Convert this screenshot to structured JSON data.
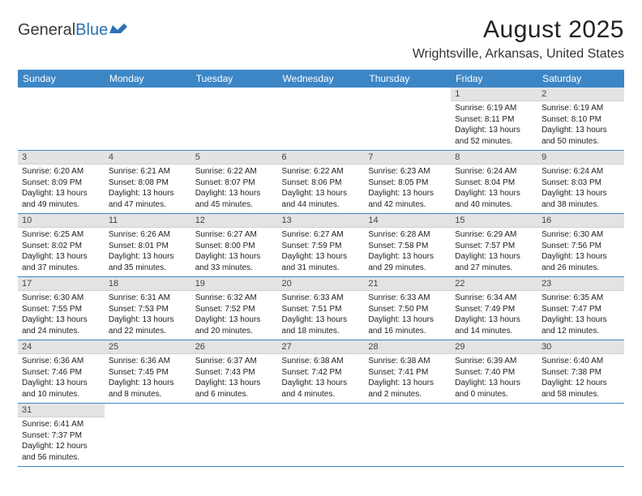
{
  "brand": {
    "part1": "General",
    "part2": "Blue"
  },
  "title": "August 2025",
  "location": "Wrightsville, Arkansas, United States",
  "colors": {
    "header_bg": "#3d86c6",
    "header_text": "#ffffff",
    "daybar_bg": "#e3e3e3",
    "rule": "#3d86c6",
    "brand_blue": "#2a72b5"
  },
  "typography": {
    "title_fontsize": 30,
    "location_fontsize": 16,
    "header_fontsize": 12,
    "daynum_fontsize": 11,
    "body_fontsize": 10
  },
  "weekdays": [
    "Sunday",
    "Monday",
    "Tuesday",
    "Wednesday",
    "Thursday",
    "Friday",
    "Saturday"
  ],
  "leading_blanks": 5,
  "days": [
    {
      "n": "1",
      "sunrise": "Sunrise: 6:19 AM",
      "sunset": "Sunset: 8:11 PM",
      "day1": "Daylight: 13 hours",
      "day2": "and 52 minutes."
    },
    {
      "n": "2",
      "sunrise": "Sunrise: 6:19 AM",
      "sunset": "Sunset: 8:10 PM",
      "day1": "Daylight: 13 hours",
      "day2": "and 50 minutes."
    },
    {
      "n": "3",
      "sunrise": "Sunrise: 6:20 AM",
      "sunset": "Sunset: 8:09 PM",
      "day1": "Daylight: 13 hours",
      "day2": "and 49 minutes."
    },
    {
      "n": "4",
      "sunrise": "Sunrise: 6:21 AM",
      "sunset": "Sunset: 8:08 PM",
      "day1": "Daylight: 13 hours",
      "day2": "and 47 minutes."
    },
    {
      "n": "5",
      "sunrise": "Sunrise: 6:22 AM",
      "sunset": "Sunset: 8:07 PM",
      "day1": "Daylight: 13 hours",
      "day2": "and 45 minutes."
    },
    {
      "n": "6",
      "sunrise": "Sunrise: 6:22 AM",
      "sunset": "Sunset: 8:06 PM",
      "day1": "Daylight: 13 hours",
      "day2": "and 44 minutes."
    },
    {
      "n": "7",
      "sunrise": "Sunrise: 6:23 AM",
      "sunset": "Sunset: 8:05 PM",
      "day1": "Daylight: 13 hours",
      "day2": "and 42 minutes."
    },
    {
      "n": "8",
      "sunrise": "Sunrise: 6:24 AM",
      "sunset": "Sunset: 8:04 PM",
      "day1": "Daylight: 13 hours",
      "day2": "and 40 minutes."
    },
    {
      "n": "9",
      "sunrise": "Sunrise: 6:24 AM",
      "sunset": "Sunset: 8:03 PM",
      "day1": "Daylight: 13 hours",
      "day2": "and 38 minutes."
    },
    {
      "n": "10",
      "sunrise": "Sunrise: 6:25 AM",
      "sunset": "Sunset: 8:02 PM",
      "day1": "Daylight: 13 hours",
      "day2": "and 37 minutes."
    },
    {
      "n": "11",
      "sunrise": "Sunrise: 6:26 AM",
      "sunset": "Sunset: 8:01 PM",
      "day1": "Daylight: 13 hours",
      "day2": "and 35 minutes."
    },
    {
      "n": "12",
      "sunrise": "Sunrise: 6:27 AM",
      "sunset": "Sunset: 8:00 PM",
      "day1": "Daylight: 13 hours",
      "day2": "and 33 minutes."
    },
    {
      "n": "13",
      "sunrise": "Sunrise: 6:27 AM",
      "sunset": "Sunset: 7:59 PM",
      "day1": "Daylight: 13 hours",
      "day2": "and 31 minutes."
    },
    {
      "n": "14",
      "sunrise": "Sunrise: 6:28 AM",
      "sunset": "Sunset: 7:58 PM",
      "day1": "Daylight: 13 hours",
      "day2": "and 29 minutes."
    },
    {
      "n": "15",
      "sunrise": "Sunrise: 6:29 AM",
      "sunset": "Sunset: 7:57 PM",
      "day1": "Daylight: 13 hours",
      "day2": "and 27 minutes."
    },
    {
      "n": "16",
      "sunrise": "Sunrise: 6:30 AM",
      "sunset": "Sunset: 7:56 PM",
      "day1": "Daylight: 13 hours",
      "day2": "and 26 minutes."
    },
    {
      "n": "17",
      "sunrise": "Sunrise: 6:30 AM",
      "sunset": "Sunset: 7:55 PM",
      "day1": "Daylight: 13 hours",
      "day2": "and 24 minutes."
    },
    {
      "n": "18",
      "sunrise": "Sunrise: 6:31 AM",
      "sunset": "Sunset: 7:53 PM",
      "day1": "Daylight: 13 hours",
      "day2": "and 22 minutes."
    },
    {
      "n": "19",
      "sunrise": "Sunrise: 6:32 AM",
      "sunset": "Sunset: 7:52 PM",
      "day1": "Daylight: 13 hours",
      "day2": "and 20 minutes."
    },
    {
      "n": "20",
      "sunrise": "Sunrise: 6:33 AM",
      "sunset": "Sunset: 7:51 PM",
      "day1": "Daylight: 13 hours",
      "day2": "and 18 minutes."
    },
    {
      "n": "21",
      "sunrise": "Sunrise: 6:33 AM",
      "sunset": "Sunset: 7:50 PM",
      "day1": "Daylight: 13 hours",
      "day2": "and 16 minutes."
    },
    {
      "n": "22",
      "sunrise": "Sunrise: 6:34 AM",
      "sunset": "Sunset: 7:49 PM",
      "day1": "Daylight: 13 hours",
      "day2": "and 14 minutes."
    },
    {
      "n": "23",
      "sunrise": "Sunrise: 6:35 AM",
      "sunset": "Sunset: 7:47 PM",
      "day1": "Daylight: 13 hours",
      "day2": "and 12 minutes."
    },
    {
      "n": "24",
      "sunrise": "Sunrise: 6:36 AM",
      "sunset": "Sunset: 7:46 PM",
      "day1": "Daylight: 13 hours",
      "day2": "and 10 minutes."
    },
    {
      "n": "25",
      "sunrise": "Sunrise: 6:36 AM",
      "sunset": "Sunset: 7:45 PM",
      "day1": "Daylight: 13 hours",
      "day2": "and 8 minutes."
    },
    {
      "n": "26",
      "sunrise": "Sunrise: 6:37 AM",
      "sunset": "Sunset: 7:43 PM",
      "day1": "Daylight: 13 hours",
      "day2": "and 6 minutes."
    },
    {
      "n": "27",
      "sunrise": "Sunrise: 6:38 AM",
      "sunset": "Sunset: 7:42 PM",
      "day1": "Daylight: 13 hours",
      "day2": "and 4 minutes."
    },
    {
      "n": "28",
      "sunrise": "Sunrise: 6:38 AM",
      "sunset": "Sunset: 7:41 PM",
      "day1": "Daylight: 13 hours",
      "day2": "and 2 minutes."
    },
    {
      "n": "29",
      "sunrise": "Sunrise: 6:39 AM",
      "sunset": "Sunset: 7:40 PM",
      "day1": "Daylight: 13 hours",
      "day2": "and 0 minutes."
    },
    {
      "n": "30",
      "sunrise": "Sunrise: 6:40 AM",
      "sunset": "Sunset: 7:38 PM",
      "day1": "Daylight: 12 hours",
      "day2": "and 58 minutes."
    },
    {
      "n": "31",
      "sunrise": "Sunrise: 6:41 AM",
      "sunset": "Sunset: 7:37 PM",
      "day1": "Daylight: 12 hours",
      "day2": "and 56 minutes."
    }
  ]
}
